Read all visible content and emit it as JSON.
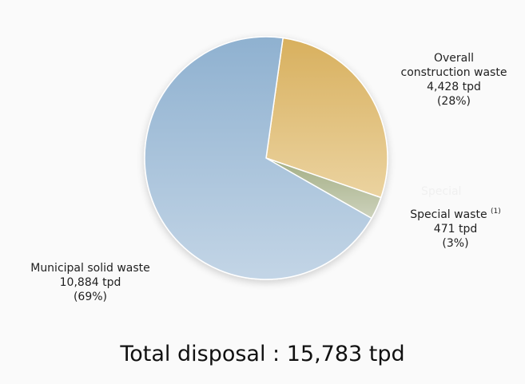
{
  "chart_data": {
    "type": "pie",
    "title": "",
    "unit": "tpd",
    "categories": [
      "Overall construction waste",
      "Special waste",
      "Municipal solid waste"
    ],
    "values": [
      4428,
      471,
      10884
    ],
    "percentages": [
      28,
      3,
      69
    ],
    "colors": [
      "#d9b363",
      "#a8b48c",
      "#94b4d2"
    ],
    "start_angle_deg": 8,
    "direction": "clockwise",
    "total": 15783
  },
  "labels": {
    "construction": {
      "line1": "Overall",
      "line2": "construction waste",
      "value": "4,428 tpd",
      "percent": "(28%)"
    },
    "special": {
      "ghost": "Special",
      "name": "Special waste",
      "footnote": "(1)",
      "value": "471 tpd",
      "percent": "(3%)"
    },
    "municipal": {
      "name": "Municipal solid waste",
      "value": "10,884 tpd",
      "percent": "(69%)"
    }
  },
  "footer": {
    "total_text": "Total disposal : 15,783 tpd"
  }
}
